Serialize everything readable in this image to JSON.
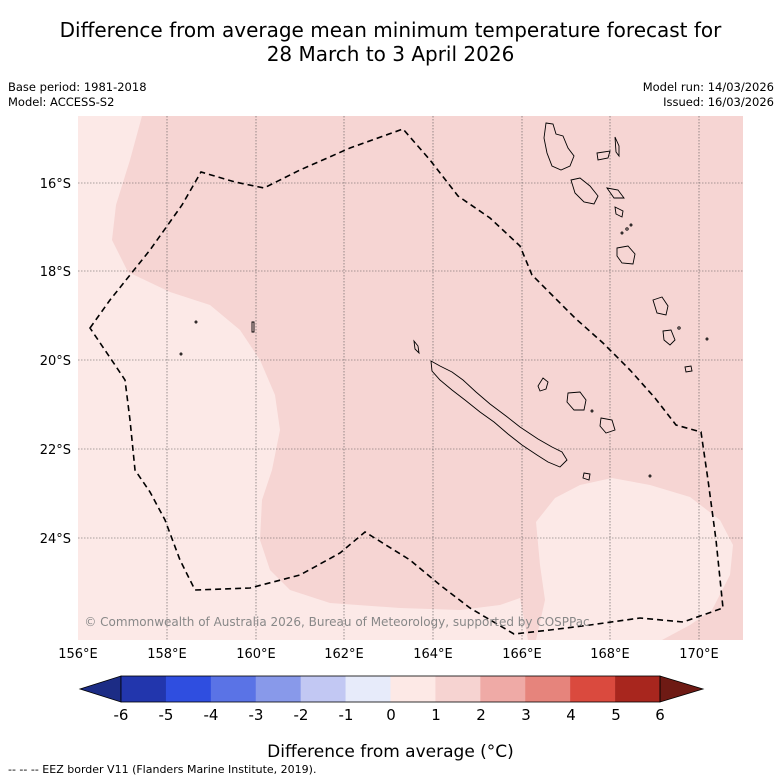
{
  "title": {
    "line1": "Difference from average mean minimum temperature forecast for",
    "line2": "28 March to 3 April 2026"
  },
  "meta_left": {
    "base_period": "Base period: 1981-2018",
    "model": "Model: ACCESS-S2"
  },
  "meta_right": {
    "model_run": "Model run: 14/03/2026",
    "issued": "Issued: 16/03/2026"
  },
  "map": {
    "lat_labels": [
      "16°S",
      "18°S",
      "20°S",
      "22°S",
      "24°S"
    ],
    "lon_labels": [
      "156°E",
      "158°E",
      "160°E",
      "162°E",
      "164°E",
      "166°E",
      "168°E",
      "170°E"
    ],
    "copyright": "© Commonwealth of Australia 2026, Bureau of Meteorology, supported by COSPPac",
    "colors": {
      "band_0_1": "#fce9e7",
      "band_1_2": "#f6d5d3",
      "coast": "#000000",
      "grid": "#555555"
    }
  },
  "colorbar": {
    "ticks": [
      "-6",
      "-5",
      "-4",
      "-3",
      "-2",
      "-1",
      "0",
      "1",
      "2",
      "3",
      "4",
      "5",
      "6"
    ],
    "colors": [
      "#1c2c85",
      "#2236ad",
      "#2f4ee0",
      "#5a73e6",
      "#8899ea",
      "#c2c8f3",
      "#e7ebfa",
      "#fde9e6",
      "#f6d3d1",
      "#efaaa6",
      "#e6847c",
      "#da4a3e",
      "#a8261e",
      "#6e1a14"
    ],
    "label": "Difference from average (°C)"
  },
  "footer": "-- -- -- EEZ border V11 (Flanders Marine Institute, 2019)."
}
